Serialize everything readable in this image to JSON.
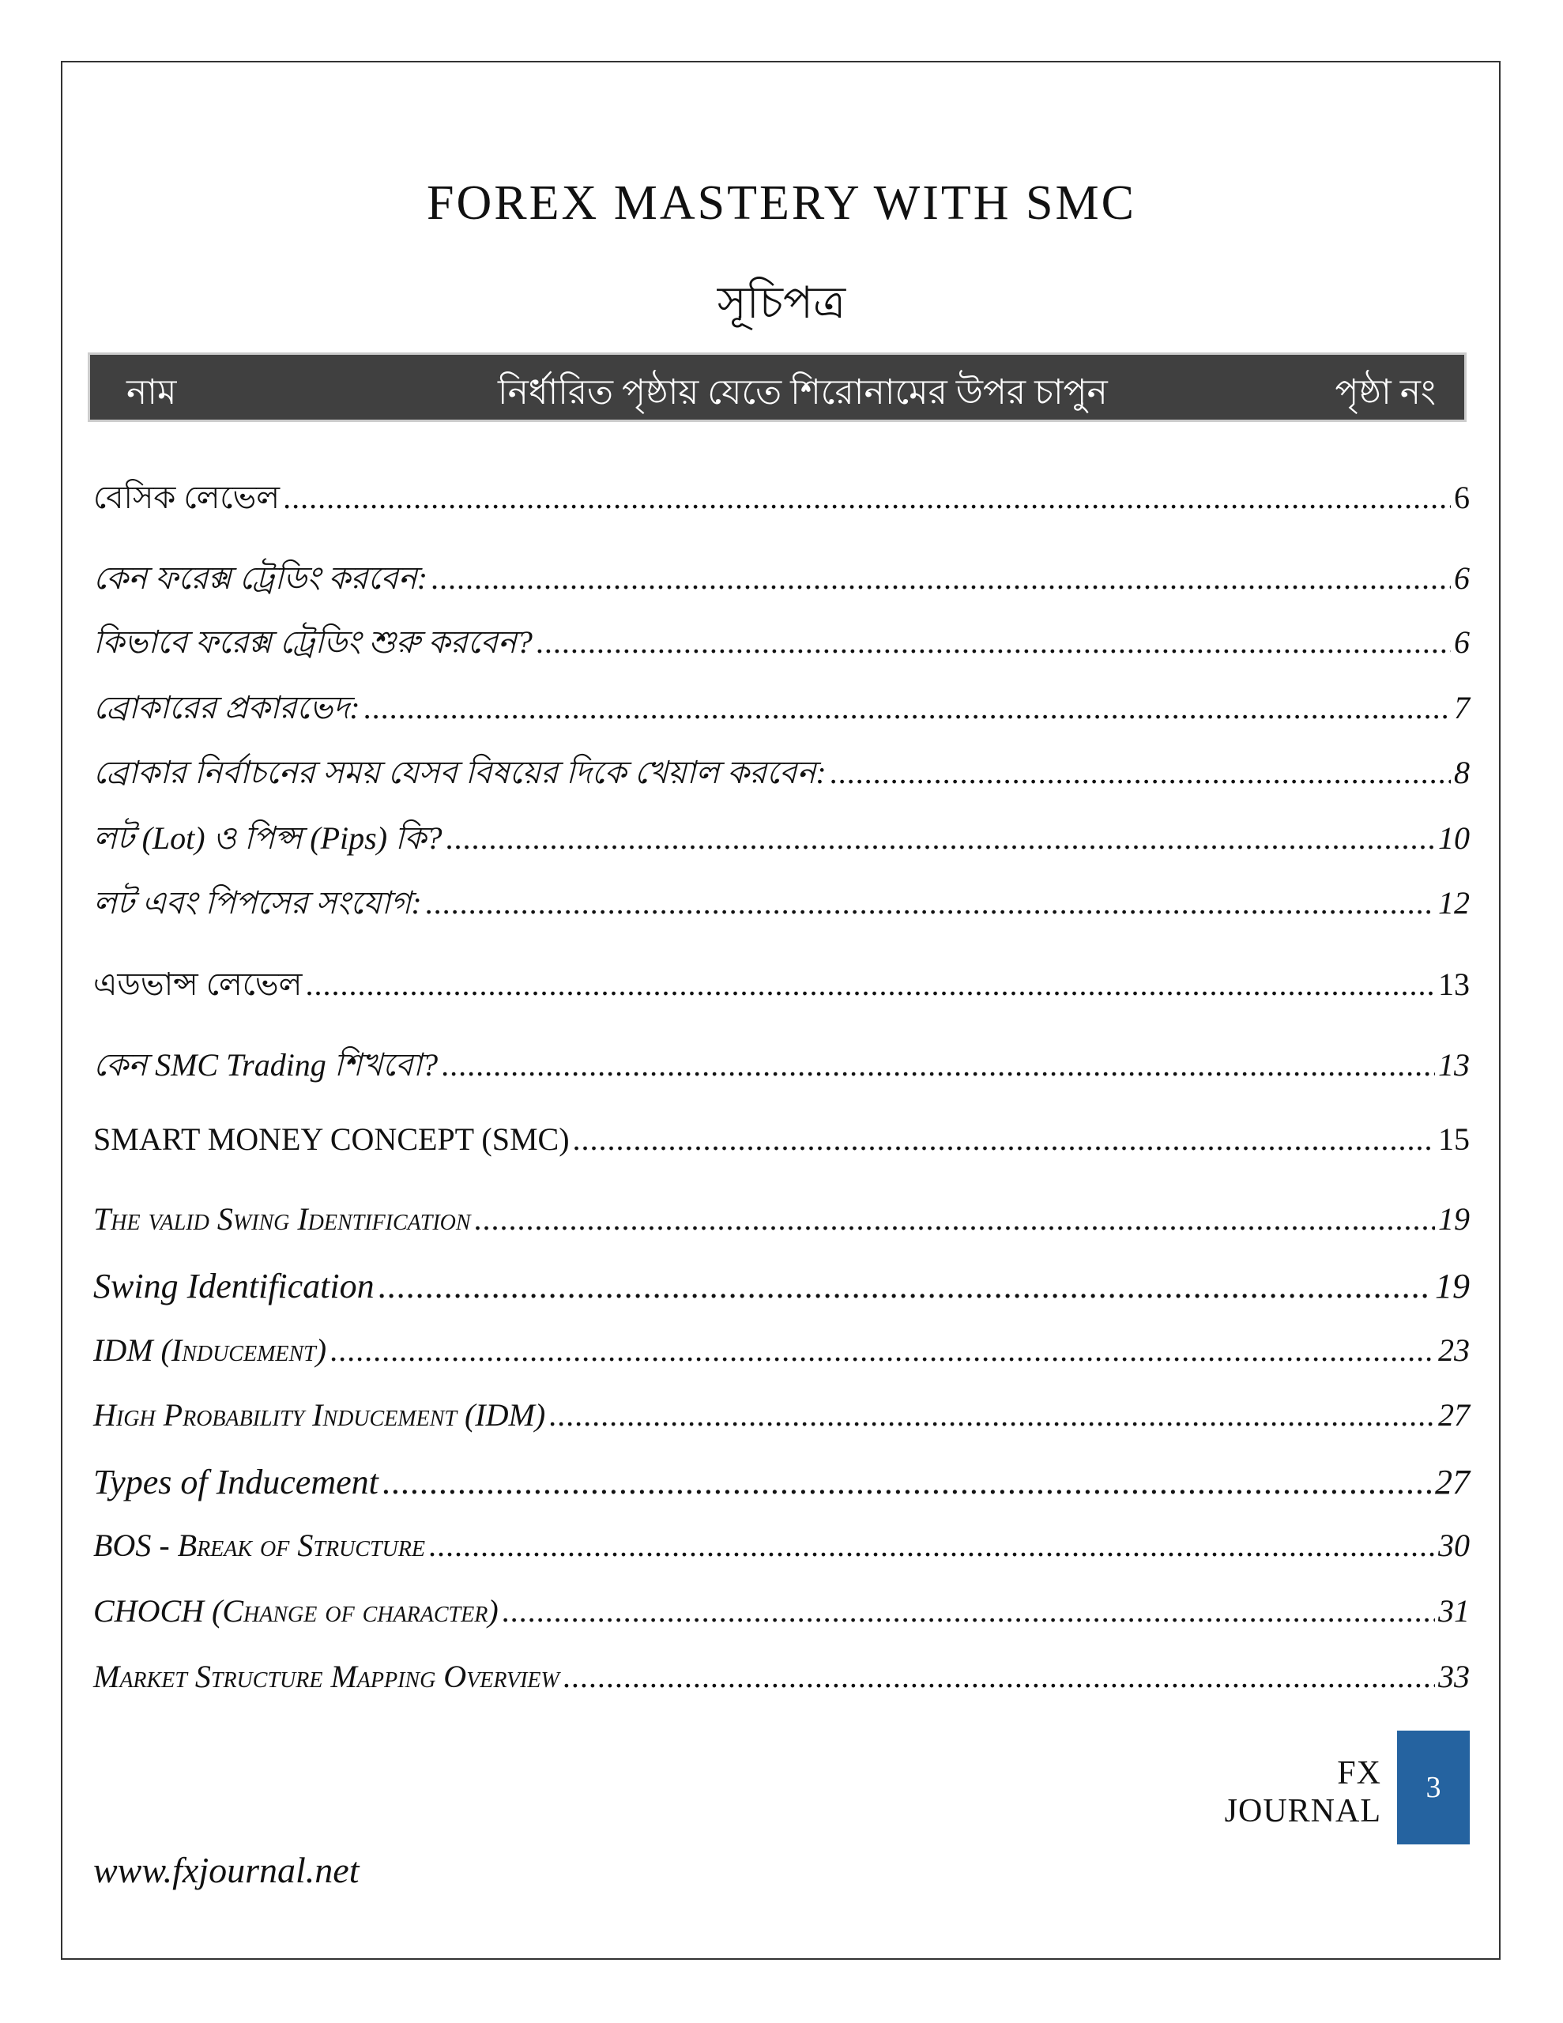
{
  "document": {
    "title": "FOREX MASTERY WITH SMC",
    "subtitle": "সূচিপত্র",
    "header": {
      "name": "নাম",
      "instruction": "নির্ধারিত পৃষ্ঠায় যেতে শিরোনামের উপর চাপুন",
      "page_no": "পৃষ্ঠা নং"
    },
    "entries": [
      {
        "label": "বেসিক লেভেল",
        "page": "6"
      },
      {
        "label": "কেন ফরেক্স ট্রেডিং করবেন:",
        "page": "6"
      },
      {
        "label": "কিভাবে ফরেক্স ট্রেডিং শুরু করবেন?",
        "page": "6"
      },
      {
        "label": "ব্রোকারের প্রকারভেদ:",
        "page": "7"
      },
      {
        "label": "ব্রোকার নির্বাচনের সময় যেসব বিষয়ের দিকে খেয়াল করবেন:",
        "page": "8"
      },
      {
        "label": "লট (Lot) ও পিপ্স (Pips) কি?",
        "page": "10"
      },
      {
        "label": "লট এবং পিপসের সংযোগ:",
        "page": "12"
      },
      {
        "label": "এডভান্স লেভেল",
        "page": "13"
      },
      {
        "label": "কেন SMC Trading শিখবো?",
        "page": "13"
      },
      {
        "label": "SMART MONEY CONCEPT (SMC)",
        "page": "15"
      },
      {
        "label": "The valid Swing Identification",
        "page": "19"
      },
      {
        "label": "Swing Identification",
        "page": "19"
      },
      {
        "label": "IDM (Inducement)",
        "page": "23"
      },
      {
        "label": "High Probability Inducement (IDM)",
        "page": "27"
      },
      {
        "label": "Types of Inducement",
        "page": "27"
      },
      {
        "label": "BOS - Break of Structure",
        "page": "30"
      },
      {
        "label": "CHOCH (Change of character)",
        "page": "31"
      },
      {
        "label": "Market Structure Mapping Overview",
        "page": "33"
      }
    ],
    "footer": {
      "journal": "FX JOURNAL",
      "page_number": "3",
      "website": "www.fxjournal.net"
    },
    "colors": {
      "header_bar": "#404040",
      "page_box": "#2563a0"
    }
  }
}
